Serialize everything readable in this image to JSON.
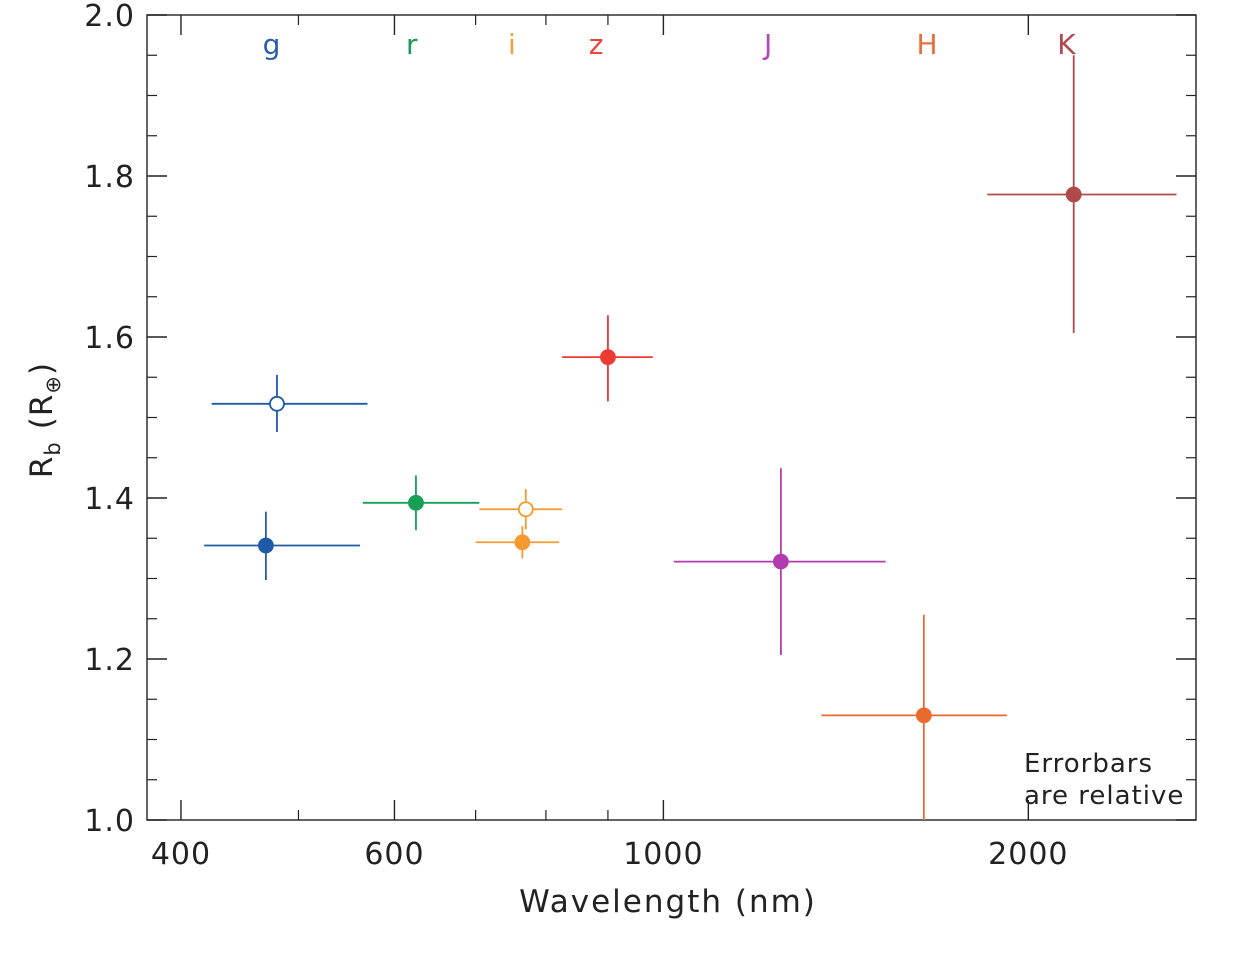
{
  "chart_data": {
    "type": "scatter",
    "title": "",
    "xlabel": "Wavelength (nm)",
    "ylabel_main": "R",
    "ylabel_sub": "b",
    "ylabel_unit_open": "(R",
    "ylabel_unit_sub": "⊕",
    "ylabel_unit_close": ")",
    "x_scale": "log",
    "xlim": [
      375,
      2750
    ],
    "ylim": [
      1.0,
      2.0
    ],
    "x_ticks": [
      400,
      600,
      1000,
      2000
    ],
    "x_tick_labels": [
      "400",
      "600",
      "1000",
      "2000"
    ],
    "y_ticks": [
      1.0,
      1.2,
      1.4,
      1.6,
      1.8,
      2.0
    ],
    "y_tick_labels": [
      "1.0",
      "1.2",
      "1.4",
      "1.6",
      "1.8",
      "2.0"
    ],
    "band_labels": [
      {
        "text": "g",
        "x": 475,
        "color": "#2a5ca8"
      },
      {
        "text": "r",
        "x": 620,
        "color": "#1a9a5a"
      },
      {
        "text": "i",
        "x": 750,
        "color": "#f5a040"
      },
      {
        "text": "z",
        "x": 880,
        "color": "#e8453c"
      },
      {
        "text": "J",
        "x": 1220,
        "color": "#b04ab8"
      },
      {
        "text": "H",
        "x": 1650,
        "color": "#e8703a"
      },
      {
        "text": "K",
        "x": 2150,
        "color": "#b04a50"
      }
    ],
    "series": [
      {
        "band": "g",
        "filled": true,
        "color": "#1f5aa8",
        "x": 470,
        "y": 1.341,
        "x_err": [
          418,
          562
        ],
        "y_err": [
          1.298,
          1.383
        ]
      },
      {
        "band": "g",
        "filled": false,
        "color": "#1f5aa8",
        "x": 480,
        "y": 1.517,
        "x_err": [
          424,
          570
        ],
        "y_err": [
          1.482,
          1.553
        ]
      },
      {
        "band": "r",
        "filled": true,
        "color": "#17a055",
        "x": 625,
        "y": 1.394,
        "x_err": [
          565,
          705
        ],
        "y_err": [
          1.36,
          1.428
        ]
      },
      {
        "band": "i",
        "filled": true,
        "color": "#f59a30",
        "x": 765,
        "y": 1.345,
        "x_err": [
          700,
          820
        ],
        "y_err": [
          1.325,
          1.365
        ]
      },
      {
        "band": "i",
        "filled": false,
        "color": "#f59a30",
        "x": 770,
        "y": 1.386,
        "x_err": [
          705,
          825
        ],
        "y_err": [
          1.361,
          1.411
        ]
      },
      {
        "band": "z",
        "filled": true,
        "color": "#ee3a33",
        "x": 900,
        "y": 1.575,
        "x_err": [
          825,
          980
        ],
        "y_err": [
          1.52,
          1.627
        ]
      },
      {
        "band": "J",
        "filled": true,
        "color": "#b33bb0",
        "x": 1250,
        "y": 1.321,
        "x_err": [
          1020,
          1525
        ],
        "y_err": [
          1.205,
          1.437
        ]
      },
      {
        "band": "H",
        "filled": true,
        "color": "#ea6a2e",
        "x": 1640,
        "y": 1.13,
        "x_err": [
          1350,
          1920
        ],
        "y_err": [
          1.0,
          1.255
        ]
      },
      {
        "band": "K",
        "filled": true,
        "color": "#b04a48",
        "x": 2180,
        "y": 1.777,
        "x_err": [
          1850,
          2650
        ],
        "y_err": [
          1.605,
          1.95
        ]
      }
    ],
    "annotation": [
      "Errorbars",
      "are relative"
    ],
    "grid": false,
    "legend": "none"
  }
}
